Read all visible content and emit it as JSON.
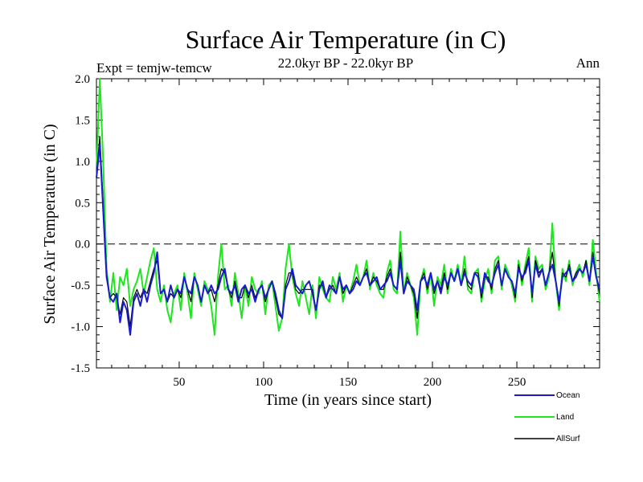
{
  "chart_data": {
    "type": "line",
    "title": "Surface Air Temperature (in C)",
    "subtitle": "22.0kyr BP - 22.0kyr BP",
    "expt_label": "Expt = temjw-temcw",
    "period_label": "Ann",
    "xlabel": "Time (in years since start)",
    "ylabel": "Surface Air Temperature (in C)",
    "xlim": [
      1,
      299
    ],
    "ylim": [
      -1.5,
      2.0
    ],
    "xticks": [
      50,
      100,
      150,
      200,
      250
    ],
    "xtick_labels": [
      "50",
      "100",
      "150",
      "200",
      "250"
    ],
    "yticks": [
      -1.5,
      -1.0,
      -0.5,
      0.0,
      0.5,
      1.0,
      1.5,
      2.0
    ],
    "ytick_labels": [
      "-1.5",
      "-1.0",
      "-0.5",
      "0.0",
      "0.5",
      "1.0",
      "1.5",
      "2.0"
    ],
    "zero_line": 0.0,
    "legend_position": "bottom-right",
    "series": [
      {
        "name": "Ocean",
        "color": "#1a1ad0",
        "x": [
          1,
          3,
          5,
          7,
          9,
          11,
          13,
          15,
          17,
          19,
          21,
          23,
          25,
          27,
          29,
          31,
          33,
          35,
          37,
          39,
          41,
          43,
          45,
          47,
          49,
          51,
          53,
          55,
          57,
          59,
          61,
          63,
          65,
          67,
          69,
          71,
          73,
          75,
          77,
          79,
          81,
          83,
          85,
          87,
          89,
          91,
          93,
          95,
          97,
          99,
          101,
          103,
          105,
          107,
          109,
          111,
          113,
          115,
          117,
          119,
          121,
          123,
          125,
          127,
          129,
          131,
          133,
          135,
          137,
          139,
          141,
          143,
          145,
          147,
          149,
          151,
          153,
          155,
          157,
          159,
          161,
          163,
          165,
          167,
          169,
          171,
          173,
          175,
          177,
          179,
          181,
          183,
          185,
          187,
          189,
          191,
          193,
          195,
          197,
          199,
          201,
          203,
          205,
          207,
          209,
          211,
          213,
          215,
          217,
          219,
          221,
          223,
          225,
          227,
          229,
          231,
          233,
          235,
          237,
          239,
          241,
          243,
          245,
          247,
          249,
          251,
          253,
          255,
          257,
          259,
          261,
          263,
          265,
          267,
          269,
          271,
          273,
          275,
          277,
          279,
          281,
          283,
          285,
          287,
          289,
          291,
          293,
          295,
          297,
          299
        ],
        "values": [
          0.8,
          1.2,
          0.4,
          -0.4,
          -0.65,
          -0.7,
          -0.6,
          -0.95,
          -0.7,
          -0.8,
          -1.1,
          -0.7,
          -0.6,
          -0.75,
          -0.55,
          -0.7,
          -0.5,
          -0.35,
          -0.1,
          -0.6,
          -0.55,
          -0.7,
          -0.5,
          -0.65,
          -0.55,
          -0.6,
          -0.4,
          -0.55,
          -0.6,
          -0.4,
          -0.5,
          -0.7,
          -0.5,
          -0.6,
          -0.5,
          -0.6,
          -0.55,
          -0.4,
          -0.3,
          -0.55,
          -0.6,
          -0.5,
          -0.7,
          -0.55,
          -0.5,
          -0.6,
          -0.55,
          -0.7,
          -0.55,
          -0.5,
          -0.65,
          -0.55,
          -0.45,
          -0.6,
          -0.8,
          -0.9,
          -0.55,
          -0.45,
          -0.3,
          -0.5,
          -0.55,
          -0.6,
          -0.5,
          -0.45,
          -0.6,
          -0.8,
          -0.55,
          -0.45,
          -0.65,
          -0.5,
          -0.55,
          -0.6,
          -0.4,
          -0.55,
          -0.5,
          -0.6,
          -0.55,
          -0.45,
          -0.5,
          -0.4,
          -0.35,
          -0.5,
          -0.45,
          -0.4,
          -0.55,
          -0.5,
          -0.45,
          -0.35,
          -0.5,
          -0.55,
          -0.2,
          -0.6,
          -0.45,
          -0.5,
          -0.55,
          -0.8,
          -0.45,
          -0.4,
          -0.5,
          -0.35,
          -0.55,
          -0.45,
          -0.6,
          -0.4,
          -0.5,
          -0.35,
          -0.45,
          -0.3,
          -0.5,
          -0.35,
          -0.45,
          -0.5,
          -0.35,
          -0.4,
          -0.6,
          -0.35,
          -0.45,
          -0.5,
          -0.35,
          -0.25,
          -0.5,
          -0.3,
          -0.4,
          -0.45,
          -0.6,
          -0.3,
          -0.4,
          -0.35,
          -0.2,
          -0.6,
          -0.25,
          -0.4,
          -0.3,
          -0.5,
          -0.35,
          -0.25,
          -0.45,
          -0.7,
          -0.4,
          -0.35,
          -0.3,
          -0.45,
          -0.4,
          -0.3,
          -0.35,
          -0.25,
          -0.45,
          -0.15,
          -0.4,
          -0.55
        ]
      },
      {
        "name": "Land",
        "color": "#1fe61f",
        "x": [
          1,
          3,
          5,
          7,
          9,
          11,
          13,
          15,
          17,
          19,
          21,
          23,
          25,
          27,
          29,
          31,
          33,
          35,
          37,
          39,
          41,
          43,
          45,
          47,
          49,
          51,
          53,
          55,
          57,
          59,
          61,
          63,
          65,
          67,
          69,
          71,
          73,
          75,
          77,
          79,
          81,
          83,
          85,
          87,
          89,
          91,
          93,
          95,
          97,
          99,
          101,
          103,
          105,
          107,
          109,
          111,
          113,
          115,
          117,
          119,
          121,
          123,
          125,
          127,
          129,
          131,
          133,
          135,
          137,
          139,
          141,
          143,
          145,
          147,
          149,
          151,
          153,
          155,
          157,
          159,
          161,
          163,
          165,
          167,
          169,
          171,
          173,
          175,
          177,
          179,
          181,
          183,
          185,
          187,
          189,
          191,
          193,
          195,
          197,
          199,
          201,
          203,
          205,
          207,
          209,
          211,
          213,
          215,
          217,
          219,
          221,
          223,
          225,
          227,
          229,
          231,
          233,
          235,
          237,
          239,
          241,
          243,
          245,
          247,
          249,
          251,
          253,
          255,
          257,
          259,
          261,
          263,
          265,
          267,
          269,
          271,
          273,
          275,
          277,
          279,
          281,
          283,
          285,
          287,
          289,
          291,
          293,
          295,
          297,
          299
        ],
        "values": [
          0.9,
          2.0,
          1.0,
          -0.3,
          -0.7,
          -0.35,
          -0.8,
          -0.4,
          -0.5,
          -0.3,
          -0.75,
          -0.55,
          -0.45,
          -0.3,
          -0.6,
          -0.4,
          -0.2,
          -0.05,
          -0.55,
          -0.7,
          -0.5,
          -0.8,
          -0.95,
          -0.6,
          -0.5,
          -0.8,
          -0.35,
          -0.6,
          -0.9,
          -0.35,
          -0.55,
          -0.75,
          -0.45,
          -0.55,
          -0.75,
          -1.1,
          -0.4,
          0.0,
          -0.55,
          -0.5,
          -0.75,
          -0.35,
          -0.6,
          -0.9,
          -0.5,
          -0.75,
          -0.4,
          -0.55,
          -0.6,
          -0.45,
          -0.85,
          -0.5,
          -0.45,
          -0.75,
          -1.05,
          -0.9,
          -0.3,
          0.0,
          -0.4,
          -0.6,
          -0.75,
          -0.45,
          -0.65,
          -0.85,
          -0.5,
          -0.9,
          -0.4,
          -0.55,
          -0.65,
          -0.7,
          -0.4,
          -0.55,
          -0.35,
          -0.7,
          -0.5,
          -0.6,
          -0.45,
          -0.25,
          -0.5,
          -0.4,
          -0.2,
          -0.55,
          -0.35,
          -0.5,
          -0.6,
          -0.65,
          -0.35,
          -0.2,
          -0.55,
          -0.6,
          0.15,
          -0.6,
          -0.35,
          -0.5,
          -0.65,
          -1.1,
          -0.45,
          -0.3,
          -0.6,
          -0.35,
          -0.75,
          -0.4,
          -0.5,
          -0.25,
          -0.6,
          -0.3,
          -0.45,
          -0.25,
          -0.5,
          -0.15,
          -0.55,
          -0.6,
          -0.35,
          -0.3,
          -0.7,
          -0.45,
          -0.3,
          -0.6,
          -0.2,
          -0.15,
          -0.55,
          -0.25,
          -0.35,
          -0.5,
          -0.7,
          -0.2,
          -0.5,
          -0.25,
          -0.05,
          -0.7,
          -0.15,
          -0.3,
          -0.25,
          -0.55,
          -0.4,
          0.25,
          -0.45,
          -0.8,
          -0.3,
          -0.45,
          -0.2,
          -0.5,
          -0.35,
          -0.25,
          -0.4,
          -0.2,
          -0.5,
          0.05,
          -0.35,
          -0.7
        ]
      },
      {
        "name": "AllSurf",
        "color": "#000000",
        "x": [
          1,
          3,
          5,
          7,
          9,
          11,
          13,
          15,
          17,
          19,
          21,
          23,
          25,
          27,
          29,
          31,
          33,
          35,
          37,
          39,
          41,
          43,
          45,
          47,
          49,
          51,
          53,
          55,
          57,
          59,
          61,
          63,
          65,
          67,
          69,
          71,
          73,
          75,
          77,
          79,
          81,
          83,
          85,
          87,
          89,
          91,
          93,
          95,
          97,
          99,
          101,
          103,
          105,
          107,
          109,
          111,
          113,
          115,
          117,
          119,
          121,
          123,
          125,
          127,
          129,
          131,
          133,
          135,
          137,
          139,
          141,
          143,
          145,
          147,
          149,
          151,
          153,
          155,
          157,
          159,
          161,
          163,
          165,
          167,
          169,
          171,
          173,
          175,
          177,
          179,
          181,
          183,
          185,
          187,
          189,
          191,
          193,
          195,
          197,
          199,
          201,
          203,
          205,
          207,
          209,
          211,
          213,
          215,
          217,
          219,
          221,
          223,
          225,
          227,
          229,
          231,
          233,
          235,
          237,
          239,
          241,
          243,
          245,
          247,
          249,
          251,
          253,
          255,
          257,
          259,
          261,
          263,
          265,
          267,
          269,
          271,
          273,
          275,
          277,
          279,
          281,
          283,
          285,
          287,
          289,
          291,
          293,
          295,
          297,
          299
        ],
        "values": [
          0.85,
          1.3,
          0.5,
          -0.35,
          -0.65,
          -0.6,
          -0.65,
          -0.85,
          -0.65,
          -0.7,
          -1.0,
          -0.65,
          -0.55,
          -0.65,
          -0.55,
          -0.6,
          -0.45,
          -0.3,
          -0.2,
          -0.6,
          -0.55,
          -0.7,
          -0.6,
          -0.65,
          -0.55,
          -0.65,
          -0.4,
          -0.55,
          -0.7,
          -0.4,
          -0.5,
          -0.7,
          -0.5,
          -0.6,
          -0.55,
          -0.7,
          -0.5,
          -0.3,
          -0.35,
          -0.55,
          -0.65,
          -0.45,
          -0.65,
          -0.65,
          -0.5,
          -0.65,
          -0.5,
          -0.65,
          -0.55,
          -0.5,
          -0.7,
          -0.55,
          -0.45,
          -0.65,
          -0.85,
          -0.9,
          -0.5,
          -0.35,
          -0.35,
          -0.55,
          -0.6,
          -0.55,
          -0.55,
          -0.55,
          -0.55,
          -0.8,
          -0.5,
          -0.5,
          -0.65,
          -0.55,
          -0.5,
          -0.6,
          -0.4,
          -0.6,
          -0.5,
          -0.6,
          -0.5,
          -0.4,
          -0.5,
          -0.4,
          -0.3,
          -0.5,
          -0.4,
          -0.45,
          -0.55,
          -0.55,
          -0.4,
          -0.3,
          -0.5,
          -0.55,
          -0.1,
          -0.6,
          -0.4,
          -0.5,
          -0.6,
          -0.9,
          -0.45,
          -0.35,
          -0.55,
          -0.35,
          -0.6,
          -0.45,
          -0.55,
          -0.35,
          -0.55,
          -0.35,
          -0.45,
          -0.3,
          -0.5,
          -0.3,
          -0.5,
          -0.55,
          -0.35,
          -0.35,
          -0.65,
          -0.4,
          -0.4,
          -0.55,
          -0.3,
          -0.2,
          -0.5,
          -0.3,
          -0.4,
          -0.45,
          -0.65,
          -0.25,
          -0.45,
          -0.3,
          -0.15,
          -0.65,
          -0.2,
          -0.35,
          -0.3,
          -0.5,
          -0.35,
          -0.1,
          -0.45,
          -0.75,
          -0.35,
          -0.4,
          -0.25,
          -0.45,
          -0.35,
          -0.3,
          -0.35,
          -0.2,
          -0.45,
          -0.1,
          -0.4,
          -0.6
        ]
      }
    ]
  }
}
